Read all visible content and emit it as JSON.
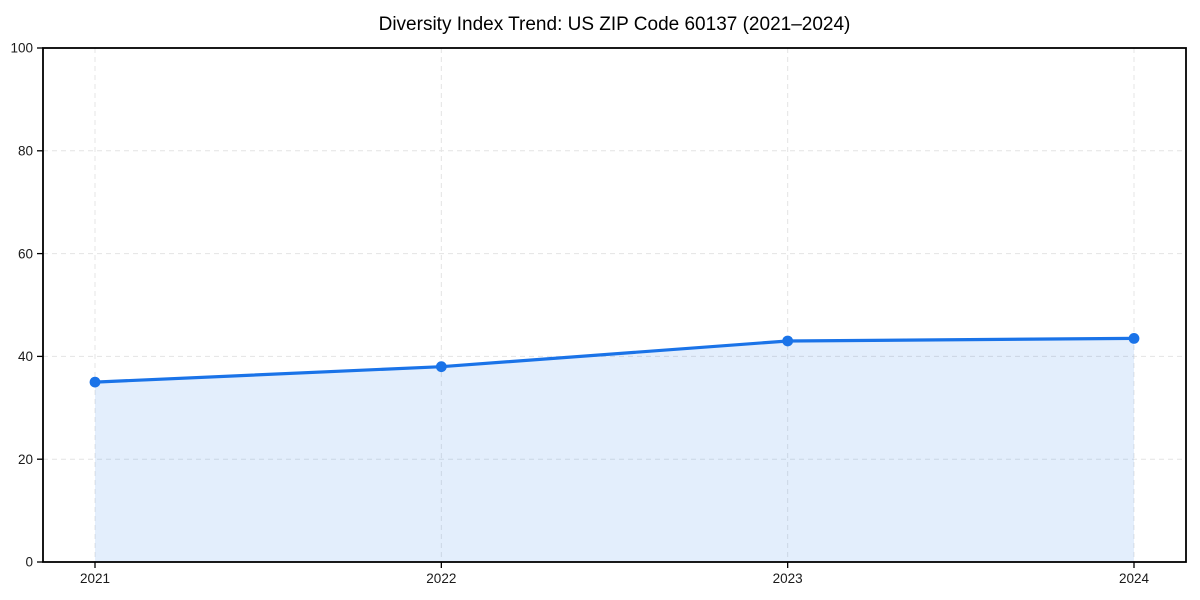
{
  "chart_data": {
    "type": "line",
    "area_fill": true,
    "title": "Diversity Index Trend: US ZIP Code 60137 (2021–2024)",
    "categories": [
      "2021",
      "2022",
      "2023",
      "2024"
    ],
    "series": [
      {
        "name": "Diversity Index",
        "values": [
          35,
          38,
          43,
          43.5
        ]
      }
    ],
    "xlabel": "",
    "ylabel": "",
    "ylim": [
      0,
      100
    ],
    "yticks": [
      0,
      20,
      40,
      60,
      80,
      100
    ],
    "grid": "dashed",
    "legend": "none",
    "style": {
      "line_color": "#1a73e8",
      "marker_color": "#1a73e8",
      "fill_color": "rgba(26,115,232,0.12)",
      "grid_color": "#e4e4e4",
      "axis_color": "#000000",
      "tick_color": "#000000",
      "tick_label_color": "#1a1a1a",
      "title_color": "#000000",
      "background": "#ffffff"
    }
  }
}
